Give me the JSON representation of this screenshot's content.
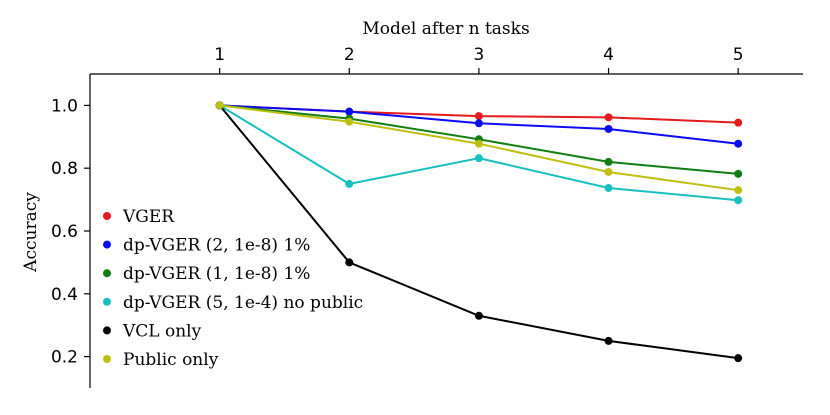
{
  "chart_data": {
    "type": "line",
    "xlabel": "Model after n tasks",
    "ylabel": "Accuracy",
    "x": [
      1,
      2,
      3,
      4,
      5
    ],
    "x_tick_labels": [
      "1",
      "2",
      "3",
      "4",
      "5"
    ],
    "x_axis_position": "top",
    "xlim": [
      0,
      5.5
    ],
    "ylim": [
      0.1,
      1.1
    ],
    "y_ticks": [
      0.2,
      0.4,
      0.6,
      0.8,
      1.0
    ],
    "y_tick_labels": [
      "0.2",
      "0.4",
      "0.6",
      "0.8",
      "1.0"
    ],
    "grid": false,
    "legend_position": "lower-left",
    "series": [
      {
        "name": "VGER",
        "color": "#e41a1c",
        "values": [
          1.0,
          0.98,
          0.966,
          0.962,
          0.945
        ]
      },
      {
        "name": "dp-VGER (2, 1e-8) 1%",
        "color": "#0a0af5",
        "values": [
          1.0,
          0.98,
          0.943,
          0.925,
          0.878
        ]
      },
      {
        "name": "dp-VGER (1, 1e-8) 1%",
        "color": "#0f7f0f",
        "values": [
          1.0,
          0.958,
          0.892,
          0.82,
          0.782
        ]
      },
      {
        "name": "dp-VGER (5, 1e-4) no public",
        "color": "#18bfbf",
        "values": [
          1.0,
          0.75,
          0.832,
          0.737,
          0.698
        ]
      },
      {
        "name": "VCL only",
        "color": "#000000",
        "values": [
          1.0,
          0.5,
          0.33,
          0.25,
          0.195
        ]
      },
      {
        "name": "Public only",
        "color": "#bfbf12",
        "values": [
          1.0,
          0.948,
          0.878,
          0.788,
          0.73
        ]
      }
    ]
  }
}
